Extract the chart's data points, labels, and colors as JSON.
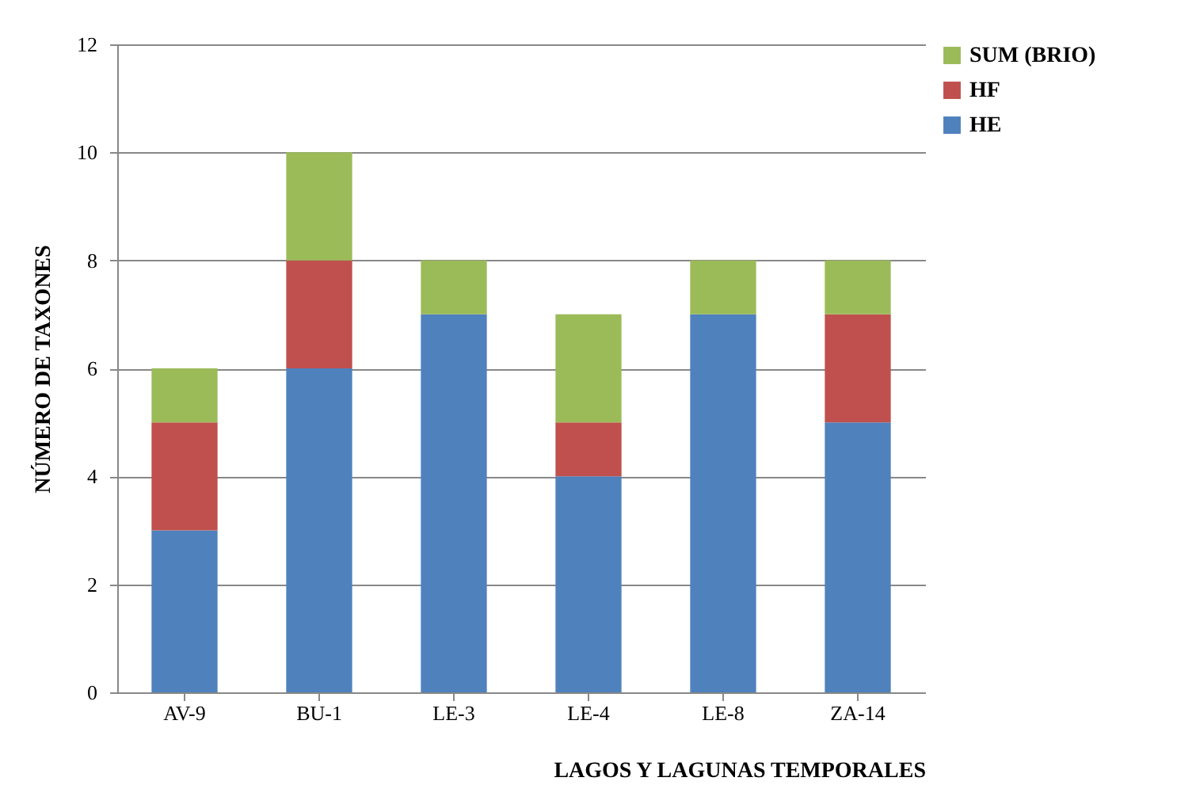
{
  "chart_data": {
    "type": "bar",
    "stacked": true,
    "xlabel": "LAGOS Y LAGUNAS TEMPORALES",
    "ylabel": "NÚMERO DE TAXONES",
    "categories": [
      "AV-9",
      "BU-1",
      "LE-3",
      "LE-4",
      "LE-8",
      "ZA-14"
    ],
    "series": [
      {
        "name": "HE",
        "color": "#4f81bd",
        "values": [
          3,
          6,
          7,
          4,
          7,
          5
        ]
      },
      {
        "name": "HF",
        "color": "#c0504d",
        "values": [
          2,
          2,
          0,
          1,
          0,
          2
        ]
      },
      {
        "name": "SUM (BRIO)",
        "color": "#9bbb59",
        "values": [
          1,
          2,
          1,
          2,
          1,
          1
        ]
      }
    ],
    "ylim": [
      0,
      12
    ],
    "yticks": [
      0,
      2,
      4,
      6,
      8,
      10,
      12
    ],
    "grid": "y",
    "legend": "right"
  }
}
